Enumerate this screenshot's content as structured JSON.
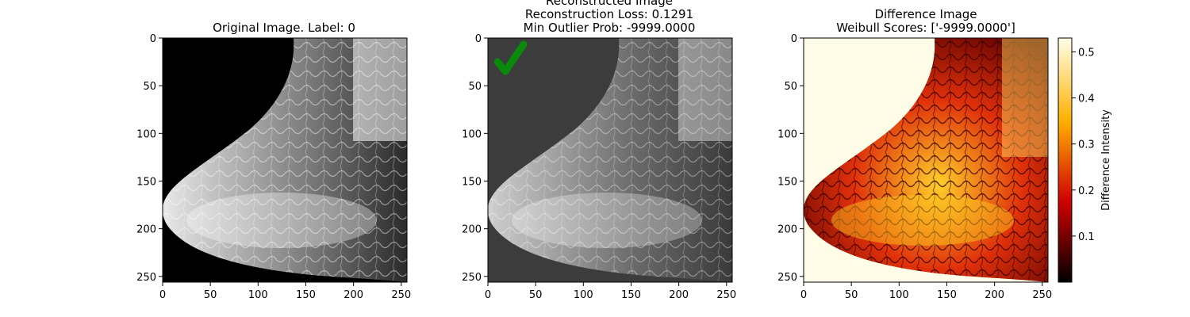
{
  "chart_data": [
    {
      "type": "heatmap",
      "panel": "original",
      "title": [
        "Original Image. Label: 0"
      ],
      "xlim": [
        0,
        255
      ],
      "ylim": [
        255,
        0
      ],
      "xticks": [
        0,
        50,
        100,
        150,
        200,
        250
      ],
      "yticks": [
        0,
        50,
        100,
        150,
        200,
        250
      ],
      "colormap": "gray"
    },
    {
      "type": "heatmap",
      "panel": "reconstructed",
      "title": [
        "Reconstructed Image",
        "Reconstruction Loss: 0.1291",
        "Min Outlier Prob: -9999.0000"
      ],
      "xlim": [
        0,
        255
      ],
      "ylim": [
        255,
        0
      ],
      "xticks": [
        0,
        50,
        100,
        150,
        200,
        250
      ],
      "yticks": [
        0,
        50,
        100,
        150,
        200,
        250
      ],
      "colormap": "gray",
      "annotation": {
        "icon": "checkmark-icon",
        "color": "#0a8a0a"
      }
    },
    {
      "type": "heatmap",
      "panel": "difference",
      "title": [
        "Difference Image",
        "Weibull Scores: ['-9999.0000']"
      ],
      "xlim": [
        0,
        255
      ],
      "ylim": [
        255,
        0
      ],
      "xticks": [
        0,
        50,
        100,
        150,
        200,
        250
      ],
      "yticks": [
        0,
        50,
        100,
        150,
        200,
        250
      ],
      "colormap": "hot",
      "colorbar": {
        "label": "Difference Intensity",
        "range": [
          0.0,
          0.53
        ],
        "ticks": [
          0.1,
          0.2,
          0.3,
          0.4,
          0.5
        ]
      }
    }
  ]
}
